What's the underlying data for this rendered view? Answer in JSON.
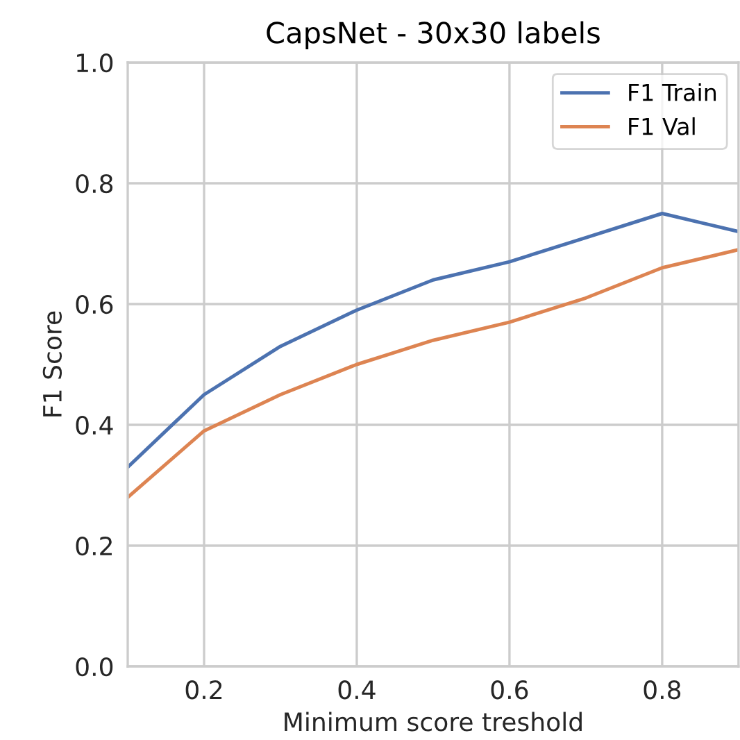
{
  "chart_data": {
    "type": "line",
    "title": "CapsNet - 30x30 labels",
    "xlabel": "Minimum score treshold",
    "ylabel": "F1 Score",
    "x": [
      0.1,
      0.2,
      0.3,
      0.4,
      0.5,
      0.6,
      0.7,
      0.8,
      0.9
    ],
    "series": [
      {
        "name": "F1 Train",
        "color": "#4c72b0",
        "values": [
          0.33,
          0.45,
          0.53,
          0.59,
          0.64,
          0.67,
          0.71,
          0.75,
          0.72
        ]
      },
      {
        "name": "F1 Val",
        "color": "#dd8452",
        "values": [
          0.28,
          0.39,
          0.45,
          0.5,
          0.54,
          0.57,
          0.61,
          0.66,
          0.69
        ]
      }
    ],
    "xlim": [
      0.1,
      0.9
    ],
    "xticks": [
      0.2,
      0.4,
      0.6,
      0.8
    ],
    "ylim": [
      0,
      1
    ],
    "yticks": [
      {
        "value": 0,
        "label": "0.0"
      },
      0.2,
      0.4,
      0.6,
      0.8,
      {
        "value": 1,
        "label": "1.0"
      }
    ],
    "grid": true,
    "legend": "top right",
    "marker": "none",
    "line_style": "solid"
  }
}
